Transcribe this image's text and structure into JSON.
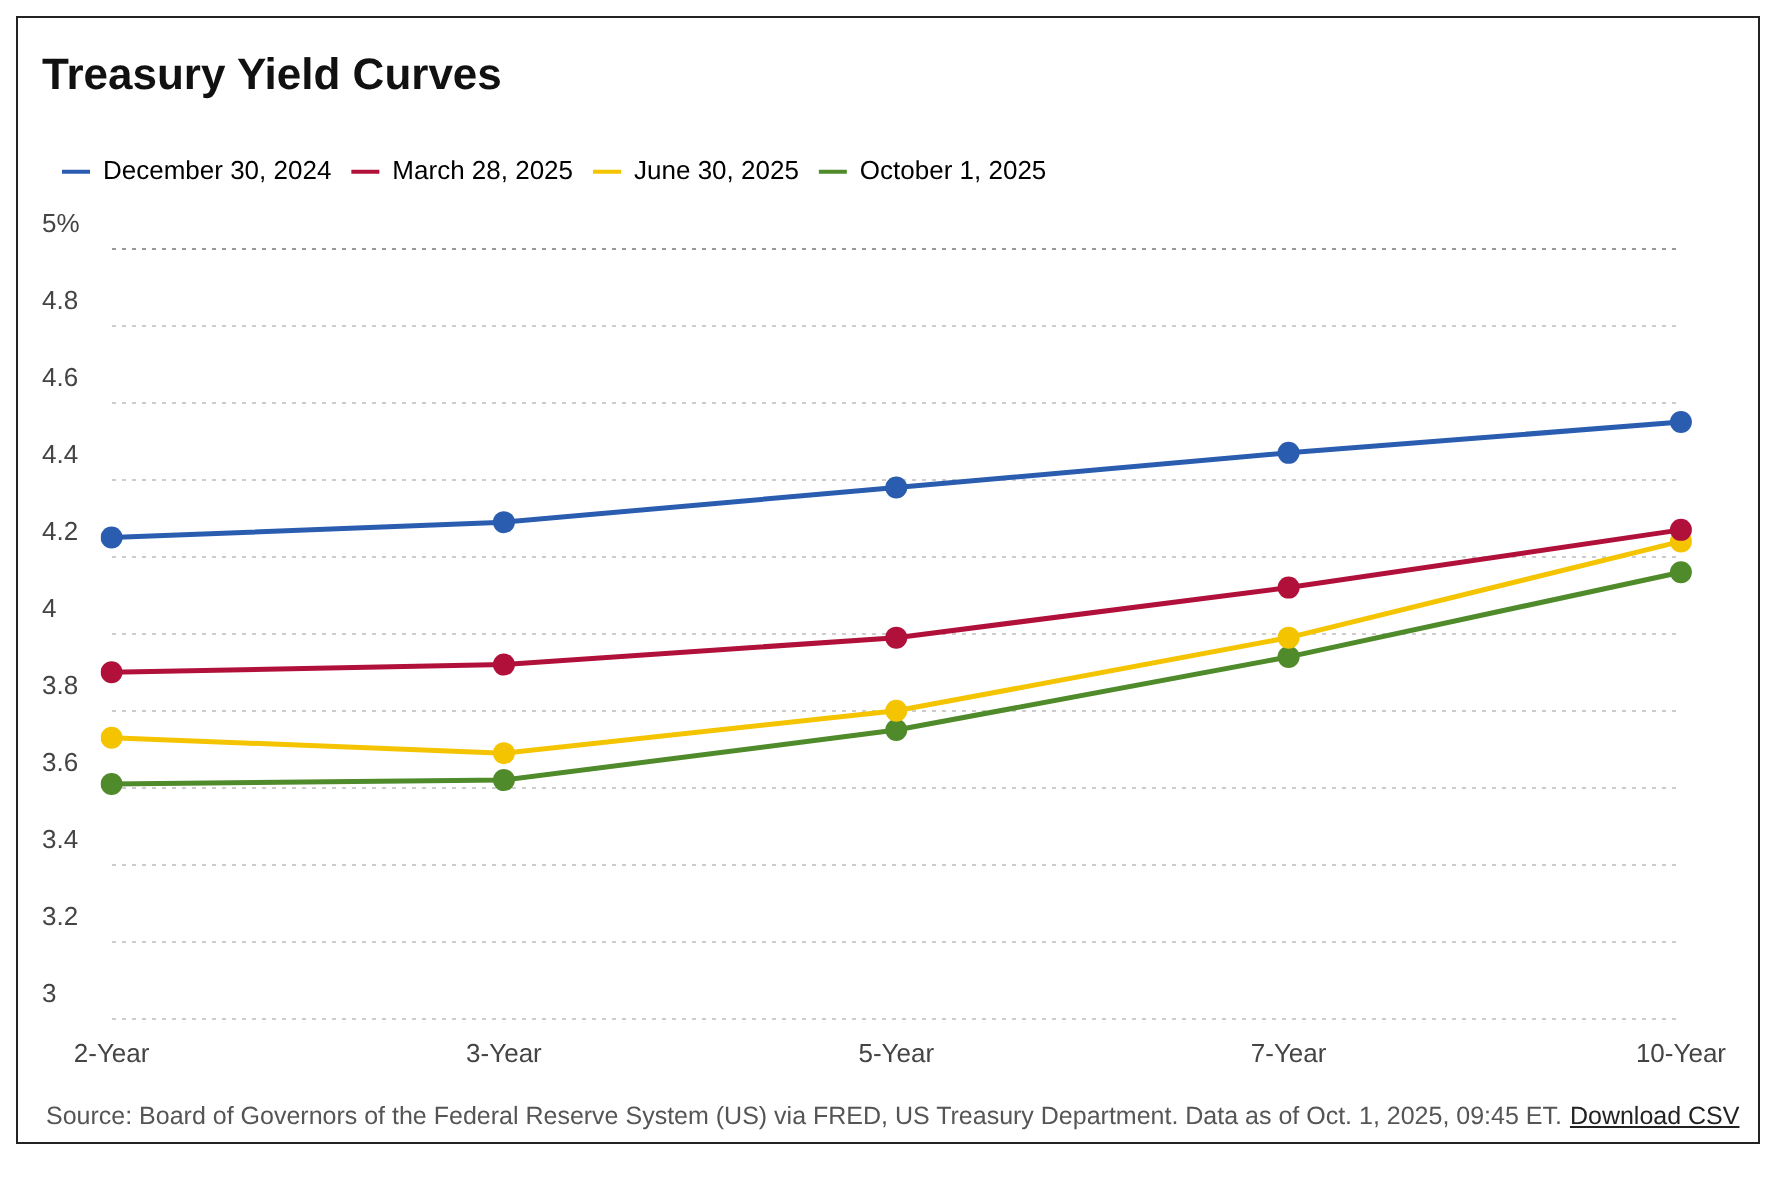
{
  "chart_data": {
    "type": "line",
    "title": "Treasury Yield Curves",
    "categories": [
      "2-Year",
      "3-Year",
      "5-Year",
      "7-Year",
      "10-Year"
    ],
    "series": [
      {
        "name": "December 30, 2024",
        "color": "#2a5db0",
        "values": [
          4.25,
          4.29,
          4.38,
          4.47,
          4.55
        ]
      },
      {
        "name": "March 28, 2025",
        "color": "#b0103a",
        "values": [
          3.9,
          3.92,
          3.99,
          4.12,
          4.27
        ]
      },
      {
        "name": "June 30, 2025",
        "color": "#f5c400",
        "values": [
          3.73,
          3.69,
          3.8,
          3.99,
          4.24
        ]
      },
      {
        "name": "October 1, 2025",
        "color": "#4f8a2b",
        "values": [
          3.61,
          3.62,
          3.75,
          3.94,
          4.16
        ]
      }
    ],
    "ylim": [
      3,
      5
    ],
    "yticks": [
      3,
      3.2,
      3.4,
      3.6,
      3.8,
      4,
      4.2,
      4.4,
      4.6,
      4.8,
      {
        "value": 5,
        "label": "5%"
      }
    ],
    "grid": "y",
    "legend": "top left",
    "marker": "circle",
    "line_style": "solid",
    "annotations": [
      "Source: Board of Governors of the Federal Reserve System (US) via FRED, US Treasury Department. Data as of Oct. 1, 2025, 09:45 ET.",
      "Download CSV"
    ]
  }
}
